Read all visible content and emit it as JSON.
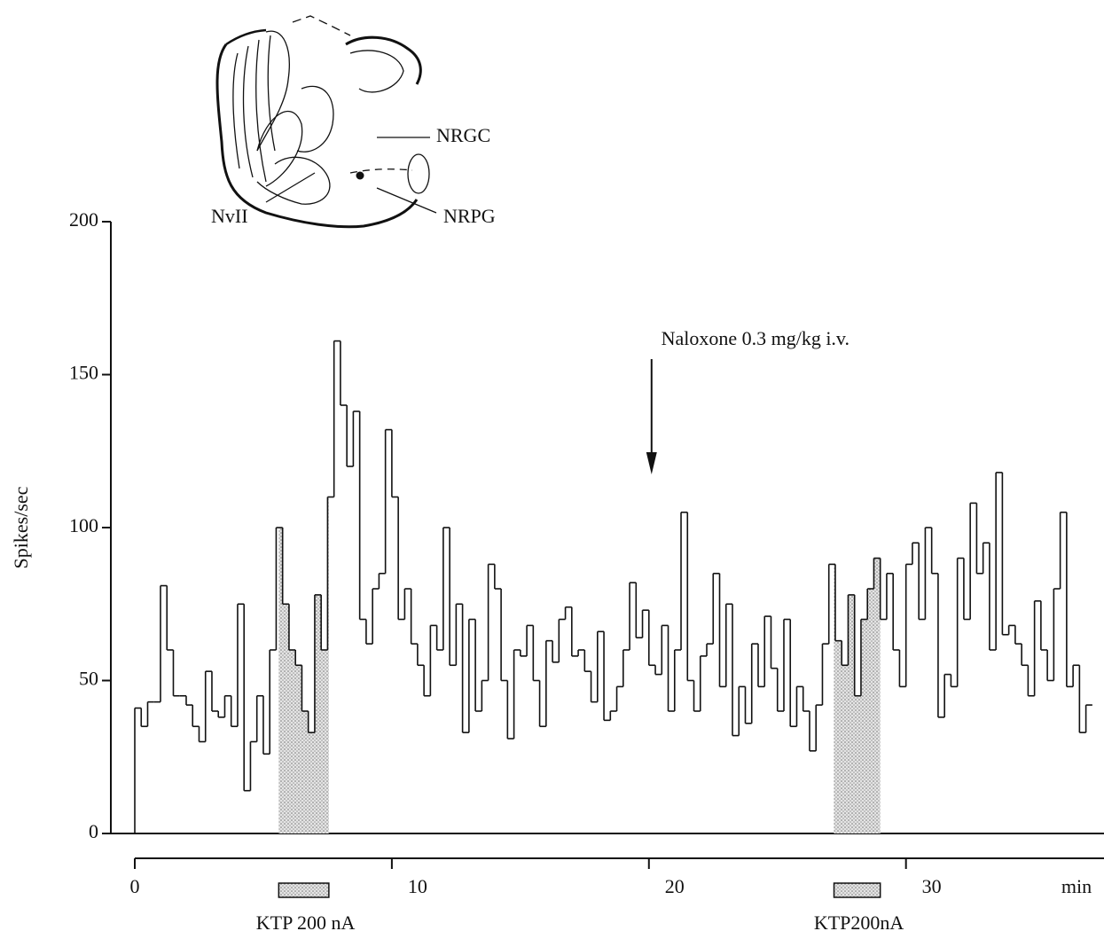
{
  "chart_data": {
    "type": "histogram",
    "y_label": "Spikes/sec",
    "x_label": "min",
    "xlim": [
      0,
      37.6
    ],
    "ylim": [
      0,
      200
    ],
    "xticks": [
      0,
      10,
      20,
      30
    ],
    "yticks": [
      0,
      50,
      100,
      150,
      200
    ],
    "color": "#111111",
    "bins": [
      0,
      0.25,
      0.5,
      0.75,
      1,
      1.25,
      1.5,
      1.75,
      2,
      2.25,
      2.5,
      2.75,
      3,
      3.25,
      3.5,
      3.75,
      4,
      4.25,
      4.5,
      4.75,
      5,
      5.25,
      5.5,
      5.75,
      6,
      6.25,
      6.5,
      6.75,
      7,
      7.25,
      7.5,
      7.75,
      8,
      8.25,
      8.5,
      8.75,
      9,
      9.25,
      9.5,
      9.75,
      10,
      10.25,
      10.5,
      10.75,
      11,
      11.25,
      11.5,
      11.75,
      12,
      12.25,
      12.5,
      12.75,
      13,
      13.25,
      13.5,
      13.75,
      14,
      14.25,
      14.5,
      14.75,
      15,
      15.25,
      15.5,
      15.75,
      16,
      16.25,
      16.5,
      16.75,
      17,
      17.25,
      17.5,
      17.75,
      18,
      18.25,
      18.5,
      18.75,
      19,
      19.25,
      19.5,
      19.75,
      20,
      20.25,
      20.5,
      20.75,
      21,
      21.25,
      21.5,
      21.75,
      22,
      22.25,
      22.5,
      22.75,
      23,
      23.25,
      23.5,
      23.75,
      24,
      24.25,
      24.5,
      24.75,
      25,
      25.25,
      25.5,
      25.75,
      26,
      26.25,
      26.5,
      26.75,
      27,
      27.25,
      27.5,
      27.75,
      28,
      28.25,
      28.5,
      28.75,
      29,
      29.25,
      29.5,
      29.75,
      30,
      30.25,
      30.5,
      30.75,
      31,
      31.25,
      31.5,
      31.75,
      32,
      32.25,
      32.5,
      32.75,
      33,
      33.25,
      33.5,
      33.75,
      34,
      34.25,
      34.5,
      34.75,
      35,
      35.25,
      35.5,
      35.75,
      36,
      36.25,
      36.5,
      36.75,
      37,
      37.25
    ],
    "values": [
      41,
      35,
      43,
      43,
      81,
      60,
      45,
      45,
      42,
      35,
      30,
      53,
      40,
      38,
      45,
      35,
      75,
      14,
      30,
      45,
      26,
      60,
      100,
      75,
      60,
      55,
      40,
      33,
      78,
      60,
      110,
      161,
      140,
      120,
      138,
      70,
      62,
      80,
      85,
      132,
      110,
      70,
      80,
      62,
      55,
      45,
      68,
      60,
      100,
      55,
      75,
      33,
      70,
      40,
      50,
      88,
      80,
      50,
      31,
      60,
      58,
      68,
      50,
      35,
      63,
      56,
      70,
      74,
      58,
      60,
      53,
      43,
      66,
      37,
      40,
      48,
      60,
      82,
      64,
      73,
      55,
      52,
      68,
      40,
      60,
      105,
      50,
      40,
      58,
      62,
      85,
      48,
      75,
      32,
      48,
      36,
      62,
      48,
      71,
      54,
      40,
      70,
      35,
      48,
      40,
      27,
      42,
      62,
      88,
      63,
      55,
      78,
      45,
      70,
      80,
      90,
      70,
      85,
      60,
      48,
      88,
      95,
      70,
      100,
      85,
      38,
      52,
      48,
      90,
      70,
      108,
      85,
      95,
      60,
      118,
      65,
      68,
      62,
      55,
      45,
      76,
      60,
      50,
      80,
      105,
      48,
      55,
      33,
      42
    ],
    "stimuli": [
      {
        "label": "KTP 200 nA",
        "start": 5.6,
        "end": 7.55
      },
      {
        "label": "KTP200nA",
        "start": 27.2,
        "end": 29.0
      }
    ],
    "annotations": [
      {
        "text": "Naloxone 0.3 mg/kg i.v.",
        "x": 20
      }
    ],
    "inset_labels": [
      "NRGC",
      "NRPG",
      "NvII"
    ]
  }
}
